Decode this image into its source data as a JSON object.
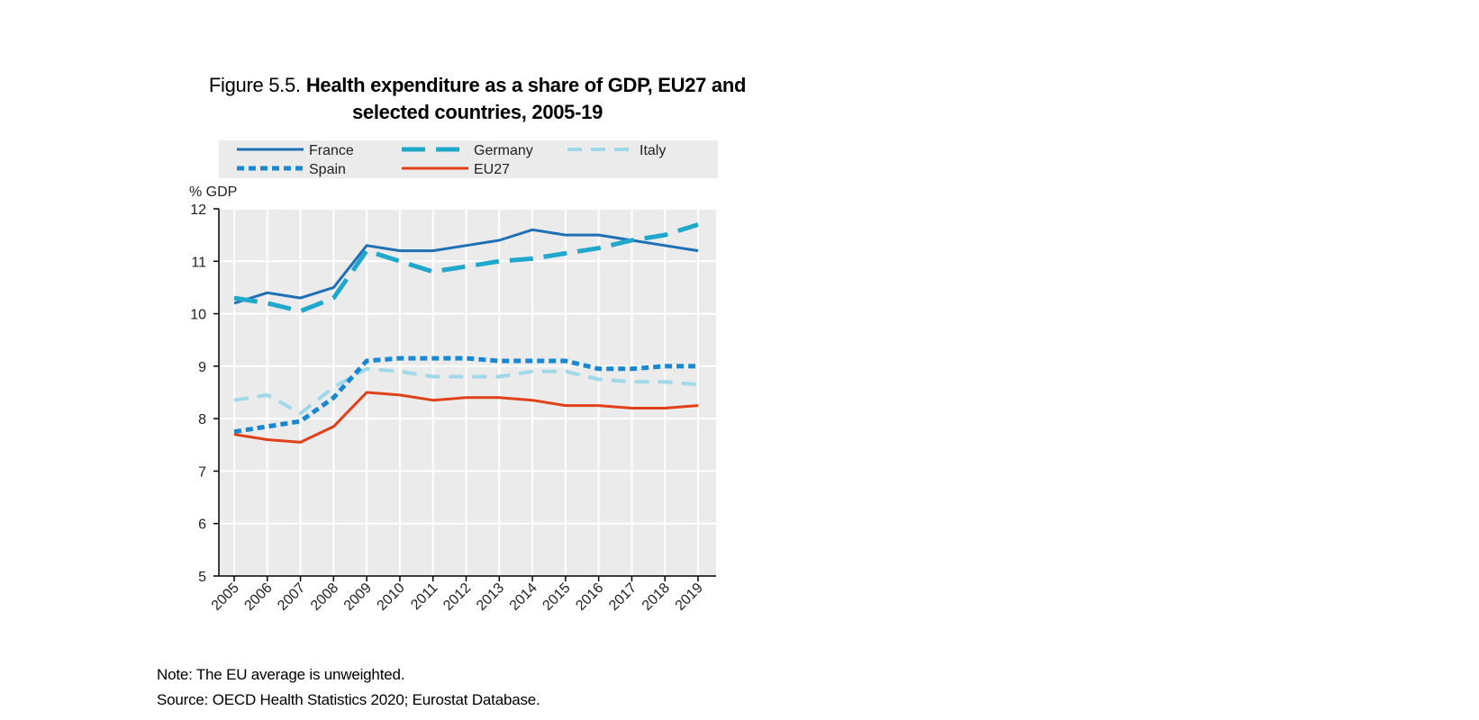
{
  "figure": {
    "prefix": "Figure 5.5.",
    "title_line1": "Health expenditure as a share of GDP, EU27 and",
    "title_line2": "selected countries, 2005-19",
    "note": "Note: The EU average is unweighted.",
    "source": "Source: OECD Health Statistics 2020; Eurostat Database."
  },
  "chart_data": {
    "type": "line",
    "title": "Health expenditure as a share of GDP, EU27 and selected countries, 2005-19",
    "ylabel": "% GDP",
    "xlabel": "",
    "ylim": [
      5,
      12
    ],
    "yticks": [
      5,
      6,
      7,
      8,
      9,
      10,
      11,
      12
    ],
    "x": [
      "2005",
      "2006",
      "2007",
      "2008",
      "2009",
      "2010",
      "2011",
      "2012",
      "2013",
      "2014",
      "2015",
      "2016",
      "2017",
      "2018",
      "2019"
    ],
    "grid": true,
    "legend_position": "top",
    "series": [
      {
        "name": "France",
        "style": "solid",
        "color": "#1f6fb5",
        "values": [
          10.2,
          10.4,
          10.3,
          10.5,
          11.3,
          11.2,
          11.2,
          11.3,
          11.4,
          11.6,
          11.5,
          11.5,
          11.4,
          11.3,
          11.2
        ]
      },
      {
        "name": "Germany",
        "style": "longdash",
        "color": "#20a8cc",
        "values": [
          10.3,
          10.2,
          10.05,
          10.3,
          11.2,
          11.0,
          10.8,
          10.9,
          11.0,
          11.05,
          11.15,
          11.25,
          11.4,
          11.5,
          11.7
        ]
      },
      {
        "name": "Italy",
        "style": "dash",
        "color": "#9fd8e8",
        "values": [
          8.35,
          8.45,
          8.1,
          8.6,
          8.95,
          8.9,
          8.8,
          8.8,
          8.8,
          8.9,
          8.9,
          8.75,
          8.7,
          8.7,
          8.65
        ]
      },
      {
        "name": "Spain",
        "style": "dot",
        "color": "#1a88d0",
        "values": [
          7.75,
          7.85,
          7.95,
          8.4,
          9.1,
          9.15,
          9.15,
          9.15,
          9.1,
          9.1,
          9.1,
          8.95,
          8.95,
          9.0,
          9.0
        ]
      },
      {
        "name": "EU27",
        "style": "solid",
        "color": "#e0401a",
        "values": [
          7.7,
          7.6,
          7.55,
          7.85,
          8.5,
          8.45,
          8.35,
          8.4,
          8.4,
          8.35,
          8.25,
          8.25,
          8.2,
          8.2,
          8.25
        ]
      }
    ]
  }
}
